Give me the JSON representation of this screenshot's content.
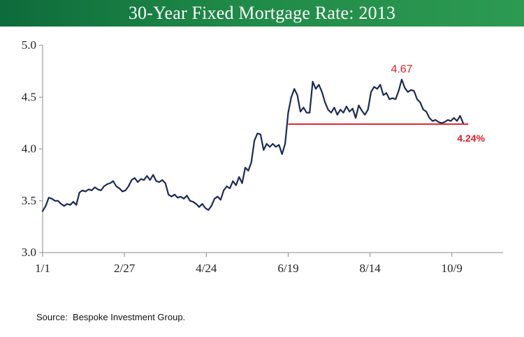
{
  "title": "30-Year Fixed Mortgage Rate: 2013",
  "source": "Source:  Bespoke Investment Group.",
  "colors": {
    "title_bar": "#1a7f45",
    "line": "#1b2a55",
    "highlight": "#e0202e",
    "axis": "#8a8a8a"
  },
  "chart_data": {
    "type": "line",
    "title": "30-Year Fixed Mortgage Rate: 2013",
    "xlabel": "",
    "ylabel": "",
    "ylim": [
      3.0,
      5.0
    ],
    "xlim": [
      0,
      45
    ],
    "yticks": [
      "3.0",
      "3.5",
      "4.0",
      "4.5",
      "5.0"
    ],
    "xticks": [
      {
        "x": 0,
        "label": "1/1"
      },
      {
        "x": 8,
        "label": "2/27"
      },
      {
        "x": 16,
        "label": "4/24"
      },
      {
        "x": 24,
        "label": "6/19"
      },
      {
        "x": 32,
        "label": "8/14"
      },
      {
        "x": 40,
        "label": "10/9"
      }
    ],
    "x_unit": "weeks since 1/1",
    "grid": false,
    "series": [
      {
        "x": [
          0,
          0.3,
          0.6,
          0.9,
          1.2,
          1.5,
          1.8,
          2.1,
          2.4,
          2.7,
          3.0,
          3.3,
          3.6,
          3.9,
          4.2,
          4.5,
          4.8,
          5.1,
          5.4,
          5.7,
          6.0,
          6.3,
          6.6,
          6.9,
          7.2,
          7.5,
          7.8,
          8.1,
          8.4,
          8.7,
          9.0,
          9.3,
          9.6,
          9.9,
          10.2,
          10.5,
          10.8,
          11.1,
          11.4,
          11.7,
          12.0,
          12.3,
          12.6,
          12.9,
          13.2,
          13.5,
          13.8,
          14.1,
          14.4,
          14.7,
          15.0,
          15.3,
          15.6,
          15.9,
          16.2,
          16.5,
          16.8,
          17.1,
          17.4,
          17.7,
          18.0,
          18.3,
          18.6,
          18.9,
          19.2,
          19.5,
          19.8,
          20.1,
          20.4,
          20.7,
          21.0,
          21.3,
          21.6,
          21.9,
          22.2,
          22.5,
          22.8,
          23.1,
          23.4,
          23.7,
          24.0,
          24.3,
          24.6,
          24.9,
          25.2,
          25.5,
          25.8,
          26.1,
          26.4,
          26.7,
          27.0,
          27.3,
          27.6,
          27.9,
          28.2,
          28.5,
          28.8,
          29.1,
          29.4,
          29.7,
          30.0,
          30.3,
          30.6,
          30.9,
          31.2,
          31.5,
          31.8,
          32.1,
          32.4,
          32.7,
          33.0,
          33.3,
          33.6,
          33.9,
          34.2,
          34.5,
          34.8,
          35.1,
          35.4,
          35.7,
          36.0,
          36.3,
          36.6,
          36.9,
          37.2,
          37.5,
          37.8,
          38.1,
          38.4,
          38.7,
          39.0,
          39.3,
          39.6,
          39.9,
          40.2,
          40.5,
          40.8,
          41.1
        ],
        "values": [
          3.4,
          3.45,
          3.53,
          3.52,
          3.5,
          3.5,
          3.47,
          3.45,
          3.47,
          3.46,
          3.49,
          3.46,
          3.58,
          3.6,
          3.59,
          3.61,
          3.6,
          3.63,
          3.61,
          3.6,
          3.64,
          3.66,
          3.67,
          3.69,
          3.64,
          3.62,
          3.59,
          3.6,
          3.64,
          3.7,
          3.72,
          3.68,
          3.71,
          3.7,
          3.74,
          3.7,
          3.75,
          3.69,
          3.68,
          3.7,
          3.67,
          3.56,
          3.54,
          3.56,
          3.53,
          3.54,
          3.52,
          3.55,
          3.5,
          3.49,
          3.47,
          3.44,
          3.47,
          3.43,
          3.41,
          3.45,
          3.52,
          3.54,
          3.51,
          3.6,
          3.64,
          3.62,
          3.69,
          3.65,
          3.73,
          3.67,
          3.82,
          3.79,
          3.87,
          4.08,
          4.15,
          4.14,
          3.99,
          4.05,
          4.02,
          4.05,
          4.02,
          4.04,
          3.95,
          4.05,
          4.35,
          4.5,
          4.58,
          4.52,
          4.36,
          4.4,
          4.35,
          4.35,
          4.65,
          4.58,
          4.62,
          4.55,
          4.45,
          4.38,
          4.35,
          4.4,
          4.33,
          4.38,
          4.35,
          4.41,
          4.36,
          4.39,
          4.3,
          4.42,
          4.37,
          4.33,
          4.38,
          4.55,
          4.6,
          4.58,
          4.62,
          4.52,
          4.54,
          4.48,
          4.49,
          4.48,
          4.56,
          4.67,
          4.59,
          4.55,
          4.57,
          4.56,
          4.48,
          4.45,
          4.38,
          4.36,
          4.3,
          4.27,
          4.28,
          4.26,
          4.25,
          4.26,
          4.28,
          4.27,
          4.3,
          4.27,
          4.32,
          4.25
        ]
      }
    ],
    "reference_line": {
      "y": 4.24,
      "x_start": 24,
      "x_end": 41.6,
      "label": "4.24%"
    },
    "annotations": [
      {
        "text": "4.67",
        "x": 35.1,
        "y": 4.67
      }
    ]
  }
}
